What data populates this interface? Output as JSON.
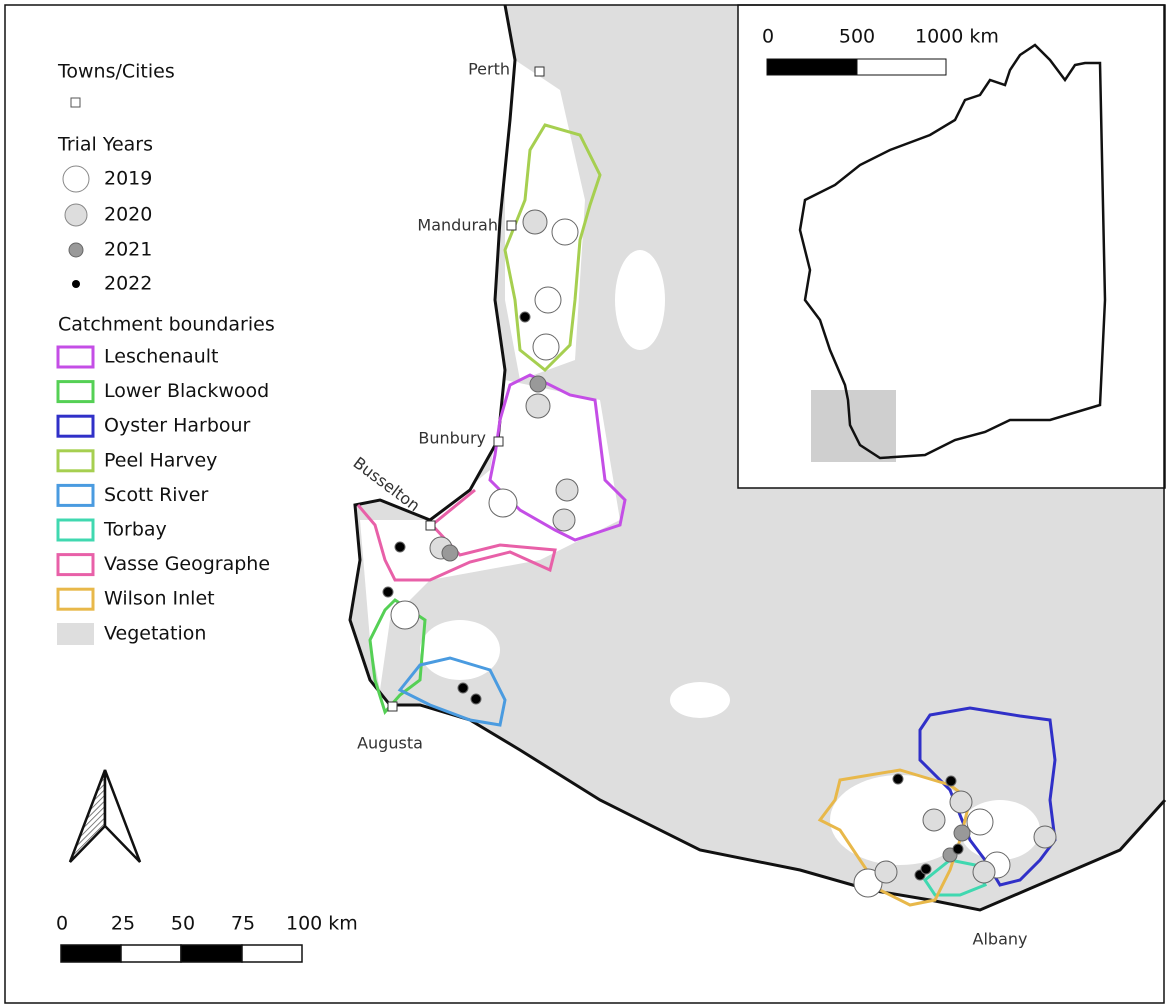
{
  "legend": {
    "towns_title": "Towns/Cities",
    "trial_title": "Trial Years",
    "years": [
      "2019",
      "2020",
      "2021",
      "2022"
    ],
    "catchment_title": "Catchment boundaries",
    "catchments": [
      {
        "name": "Leschenault",
        "color": "#c44ee6"
      },
      {
        "name": "Lower Blackwood",
        "color": "#55d055"
      },
      {
        "name": "Oyster Harbour",
        "color": "#3030c8"
      },
      {
        "name": "Peel Harvey",
        "color": "#a6cf50"
      },
      {
        "name": "Scott River",
        "color": "#4a9be0"
      },
      {
        "name": "Torbay",
        "color": "#40d8b0"
      },
      {
        "name": "Vasse Geographe",
        "color": "#e860a8"
      },
      {
        "name": "Wilson Inlet",
        "color": "#e8b84a"
      }
    ],
    "vegetation": "Vegetation"
  },
  "towns": [
    "Perth",
    "Mandurah",
    "Bunbury",
    "Busselton",
    "Augusta",
    "Albany"
  ],
  "scale_bar": {
    "labels": [
      "0",
      "25",
      "50",
      "75",
      "100 km"
    ]
  },
  "inset_scale_bar": {
    "labels": [
      "0",
      "500",
      "1000 km"
    ]
  }
}
